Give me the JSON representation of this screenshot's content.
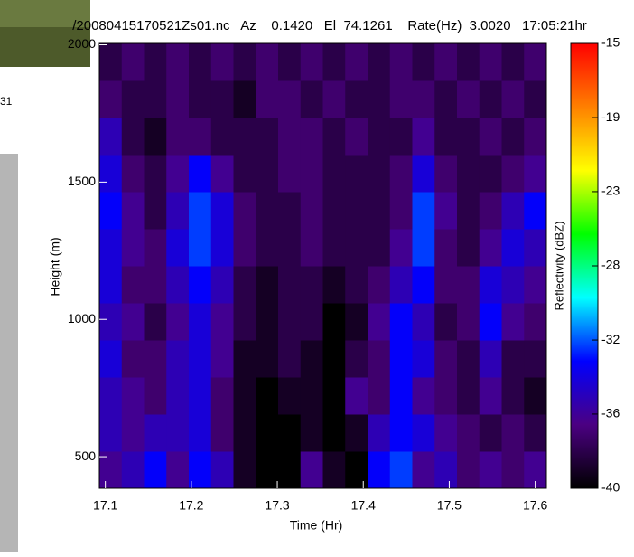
{
  "chart_data": {
    "type": "heatmap",
    "title": "/20080415170521Zs01.nc   Az    0.1420   El  74.1261    Rate(Hz)  3.0020   17:05:21hr",
    "xlabel": "Time (Hr)",
    "ylabel": "Height (m)",
    "zlabel": "Reflectivity (dBZ)",
    "xlim": [
      17.093,
      17.613
    ],
    "ylim": [
      385,
      2005
    ],
    "zlim": [
      -40,
      -15
    ],
    "xticks": [
      17.1,
      17.2,
      17.3,
      17.4,
      17.5,
      17.6
    ],
    "yticks": [
      500,
      1000,
      1500,
      2000
    ],
    "zticks": [
      -15,
      {
        "value": -19.17,
        "label": "-19"
      },
      {
        "value": -23.33,
        "label": "-23"
      },
      {
        "value": -27.5,
        "label": "-28"
      },
      {
        "value": -31.67,
        "label": "-32"
      },
      {
        "value": -35.83,
        "label": "-36"
      },
      -40
    ],
    "xbins": [
      17.093,
      17.119,
      17.145,
      17.171,
      17.197,
      17.223,
      17.249,
      17.275,
      17.301,
      17.327,
      17.353,
      17.379,
      17.405,
      17.431,
      17.457,
      17.483,
      17.509,
      17.535,
      17.561,
      17.587,
      17.613
    ],
    "ybins": [
      385,
      520,
      655,
      790,
      925,
      1060,
      1195,
      1330,
      1465,
      1600,
      1735,
      1870,
      2005
    ],
    "colormap": [
      "#000000",
      "#4b0082",
      "#0000ff",
      "#00ffff",
      "#00ff00",
      "#ffff00",
      "#ff8000",
      "#ff0000"
    ],
    "z": [
      [
        -36,
        -35,
        -33,
        -36,
        -33,
        -35,
        -39,
        -40,
        -40,
        -36,
        -39,
        -40,
        -33,
        -32,
        -36,
        -35,
        -37,
        -36,
        -37,
        -36
      ],
      [
        -35,
        -36,
        -35,
        -35,
        -34,
        -37,
        -39,
        -40,
        -40,
        -39,
        -40,
        -39,
        -35,
        -33,
        -34,
        -36,
        -37,
        -38,
        -37,
        -38
      ],
      [
        -35,
        -36,
        -37,
        -35,
        -34,
        -37,
        -39,
        -40,
        -39,
        -39,
        -40,
        -36,
        -37,
        -33,
        -36,
        -37,
        -38,
        -36,
        -38,
        -39
      ],
      [
        -34,
        -37,
        -37,
        -35,
        -34,
        -36,
        -39,
        -39,
        -38,
        -39,
        -40,
        -38,
        -37,
        -33,
        -34,
        -37,
        -38,
        -35,
        -38,
        -38
      ],
      [
        -35,
        -36,
        -38,
        -36,
        -34,
        -36,
        -38,
        -39,
        -38,
        -38,
        -40,
        -39,
        -36,
        -33,
        -35,
        -38,
        -37,
        -33,
        -36,
        -37
      ],
      [
        -34,
        -37,
        -37,
        -35,
        -33,
        -35,
        -38,
        -39,
        -38,
        -38,
        -39,
        -38,
        -37,
        -35,
        -33,
        -37,
        -37,
        -34,
        -35,
        -36
      ],
      [
        -34,
        -36,
        -37,
        -34,
        -32,
        -34,
        -37,
        -38,
        -38,
        -37,
        -38,
        -38,
        -38,
        -36,
        -32,
        -37,
        -38,
        -36,
        -34,
        -35
      ],
      [
        -33,
        -36,
        -38,
        -35,
        -32,
        -34,
        -37,
        -38,
        -38,
        -37,
        -38,
        -38,
        -38,
        -37,
        -32,
        -36,
        -38,
        -37,
        -35,
        -33
      ],
      [
        -34,
        -37,
        -38,
        -36,
        -33,
        -36,
        -38,
        -38,
        -37,
        -37,
        -38,
        -38,
        -38,
        -37,
        -34,
        -37,
        -38,
        -38,
        -37,
        -36
      ],
      [
        -35,
        -38,
        -39,
        -37,
        -37,
        -38,
        -38,
        -38,
        -37,
        -37,
        -38,
        -37,
        -38,
        -38,
        -36,
        -38,
        -38,
        -37,
        -38,
        -37
      ],
      [
        -37,
        -38,
        -38,
        -37,
        -38,
        -38,
        -39,
        -37,
        -37,
        -38,
        -37,
        -38,
        -38,
        -37,
        -37,
        -38,
        -37,
        -38,
        -37,
        -38
      ],
      [
        -38,
        -37,
        -38,
        -37,
        -38,
        -37,
        -38,
        -37,
        -38,
        -37,
        -38,
        -37,
        -38,
        -37,
        -38,
        -37,
        -38,
        -37,
        -38,
        -37
      ]
    ]
  },
  "fragment": "31"
}
